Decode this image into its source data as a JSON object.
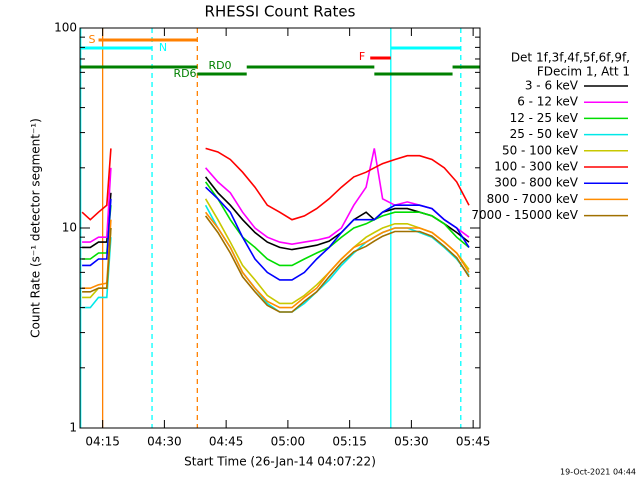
{
  "chart_data": {
    "type": "line",
    "title": "RHESSI Count Rates",
    "x_label": "Start Time (26-Jan-14 04:07:22)",
    "y_label": "Count Rate (s⁻¹ detector segment⁻¹)",
    "footer": "19-Oct-2021 04:44",
    "legend_header": [
      "Det 1f,3f,4f,5f,6f,9f,",
      "FDecim 1, Att 1"
    ],
    "log_y": true,
    "ylim": [
      1,
      100
    ],
    "yticks": [
      1,
      10,
      100
    ],
    "yminor_ticks": [
      2,
      3,
      4,
      5,
      6,
      7,
      8,
      9,
      20,
      30,
      40,
      50,
      60,
      70,
      80,
      90
    ],
    "xlim": [
      "04:09:30",
      "05:46:40"
    ],
    "xticks": [
      "04:15",
      "04:30",
      "04:45",
      "05:00",
      "05:15",
      "05:30",
      "05:45"
    ],
    "x": [
      "04:10",
      "04:12",
      "04:14",
      "04:16",
      "04:17",
      "04:30",
      "04:40",
      "04:43",
      "04:46",
      "04:49",
      "04:52",
      "04:55",
      "04:58",
      "05:01",
      "05:04",
      "05:07",
      "05:10",
      "05:13",
      "05:16",
      "05:19",
      "05:21",
      "05:23",
      "05:26",
      "05:29",
      "05:32",
      "05:35",
      "05:38",
      "05:41",
      "05:44"
    ],
    "series": [
      {
        "name": "3 - 6 keV",
        "color": "#000000",
        "values": [
          8,
          8,
          8.5,
          8.5,
          15,
          null,
          18,
          15,
          13,
          11,
          9.5,
          8.5,
          8,
          7.8,
          8,
          8.2,
          8.6,
          9.5,
          11,
          12,
          11,
          12,
          12.5,
          12.5,
          12,
          11.5,
          10.5,
          9.5,
          8.5
        ]
      },
      {
        "name": "6 - 12 keV",
        "color": "#ff00ff",
        "values": [
          8.5,
          8.5,
          9,
          9,
          20,
          null,
          20,
          17,
          15,
          12,
          10,
          9,
          8.5,
          8.3,
          8.5,
          8.7,
          9,
          10,
          13,
          16,
          25,
          14,
          13,
          13.5,
          13,
          12.5,
          11,
          10,
          9
        ]
      },
      {
        "name": "12 - 25 keV",
        "color": "#00dd00",
        "values": [
          7,
          7,
          7.5,
          7.5,
          13,
          null,
          17,
          14,
          11,
          9,
          8,
          7,
          6.5,
          6.5,
          7,
          7.5,
          8,
          9,
          10,
          10.5,
          11,
          11.5,
          12,
          12,
          12,
          11.5,
          10.5,
          9,
          8
        ]
      },
      {
        "name": "25 - 50 keV",
        "color": "#00e8e8",
        "values": [
          4,
          4,
          4.5,
          4.5,
          9,
          null,
          13,
          10,
          8,
          6,
          5,
          4.2,
          3.8,
          3.8,
          4.2,
          4.8,
          5.5,
          6.5,
          7.5,
          8.5,
          9,
          9.5,
          10,
          10,
          9.5,
          9,
          8,
          7,
          5.8
        ]
      },
      {
        "name": "50 - 100 keV",
        "color": "#c8c800",
        "values": [
          4.5,
          4.5,
          5,
          5,
          10,
          null,
          14,
          11,
          8.5,
          6.5,
          5.5,
          4.6,
          4.2,
          4.2,
          4.6,
          5.2,
          6,
          7,
          8,
          9,
          9.5,
          10,
          10.5,
          10.5,
          10,
          9.5,
          8.5,
          7.5,
          6.2
        ]
      },
      {
        "name": "100 - 300 keV",
        "color": "#ff0000",
        "values": [
          12,
          11,
          12,
          13,
          25,
          null,
          25,
          24,
          22,
          19,
          16,
          13,
          12,
          11,
          11.5,
          12.5,
          14,
          16,
          18,
          19,
          20,
          21,
          22,
          23,
          23,
          22,
          20,
          17,
          13
        ]
      },
      {
        "name": "300 - 800 keV",
        "color": "#0000ff",
        "values": [
          6.5,
          6.5,
          7,
          7,
          14,
          null,
          16,
          14,
          12,
          9,
          7,
          6,
          5.5,
          5.5,
          6,
          7,
          8,
          9.5,
          11,
          11,
          11,
          12,
          13,
          13,
          13,
          12.5,
          11,
          10,
          8
        ]
      },
      {
        "name": "800 - 7000 keV",
        "color": "#ff8c00",
        "values": [
          5,
          5,
          5.2,
          5.3,
          11,
          null,
          12,
          10,
          8,
          6,
          5,
          4.3,
          4,
          4,
          4.5,
          5,
          6,
          7,
          8,
          8.5,
          9,
          9.5,
          10,
          10,
          10,
          9.5,
          8.5,
          7.5,
          6
        ]
      },
      {
        "name": "7000 - 15000 keV",
        "color": "#a07000",
        "values": [
          4.8,
          4.8,
          5,
          5,
          10,
          null,
          11.5,
          9.5,
          7.5,
          5.7,
          4.8,
          4.1,
          3.8,
          3.8,
          4.3,
          4.8,
          5.7,
          6.7,
          7.6,
          8.1,
          8.6,
          9.1,
          9.6,
          9.6,
          9.6,
          9.1,
          8.1,
          7.1,
          5.7
        ]
      }
    ],
    "bands": [
      {
        "label": "S",
        "color": "#ff8000",
        "spans": [
          [
            "04:14",
            "04:38"
          ]
        ]
      },
      {
        "label": "N",
        "color": "#00ffff",
        "spans": [
          [
            "04:09:30",
            "04:27"
          ],
          [
            "05:25",
            "05:42"
          ]
        ]
      },
      {
        "label": "F",
        "color": "#ff0000",
        "spans": [
          [
            "05:20",
            "05:25"
          ]
        ]
      },
      {
        "label": "RD0",
        "color": "#008000",
        "spans": [
          [
            "04:09:30",
            "04:38"
          ],
          [
            "04:50",
            "05:21"
          ],
          [
            "05:40",
            "05:46:40"
          ]
        ]
      },
      {
        "label": "RD6",
        "color": "#008000",
        "spans": [
          [
            "04:38",
            "04:50"
          ],
          [
            "05:21",
            "05:40"
          ]
        ]
      }
    ],
    "vlines": [
      {
        "x": "04:09:40",
        "color": "#00ffff",
        "dashed": false
      },
      {
        "x": "04:15",
        "color": "#ff8000",
        "dashed": false
      },
      {
        "x": "04:27",
        "color": "#00ffff",
        "dashed": true
      },
      {
        "x": "04:38",
        "color": "#ff8000",
        "dashed": true
      },
      {
        "x": "05:25",
        "color": "#00ffff",
        "dashed": false
      },
      {
        "x": "05:42",
        "color": "#00ffff",
        "dashed": true
      }
    ]
  }
}
